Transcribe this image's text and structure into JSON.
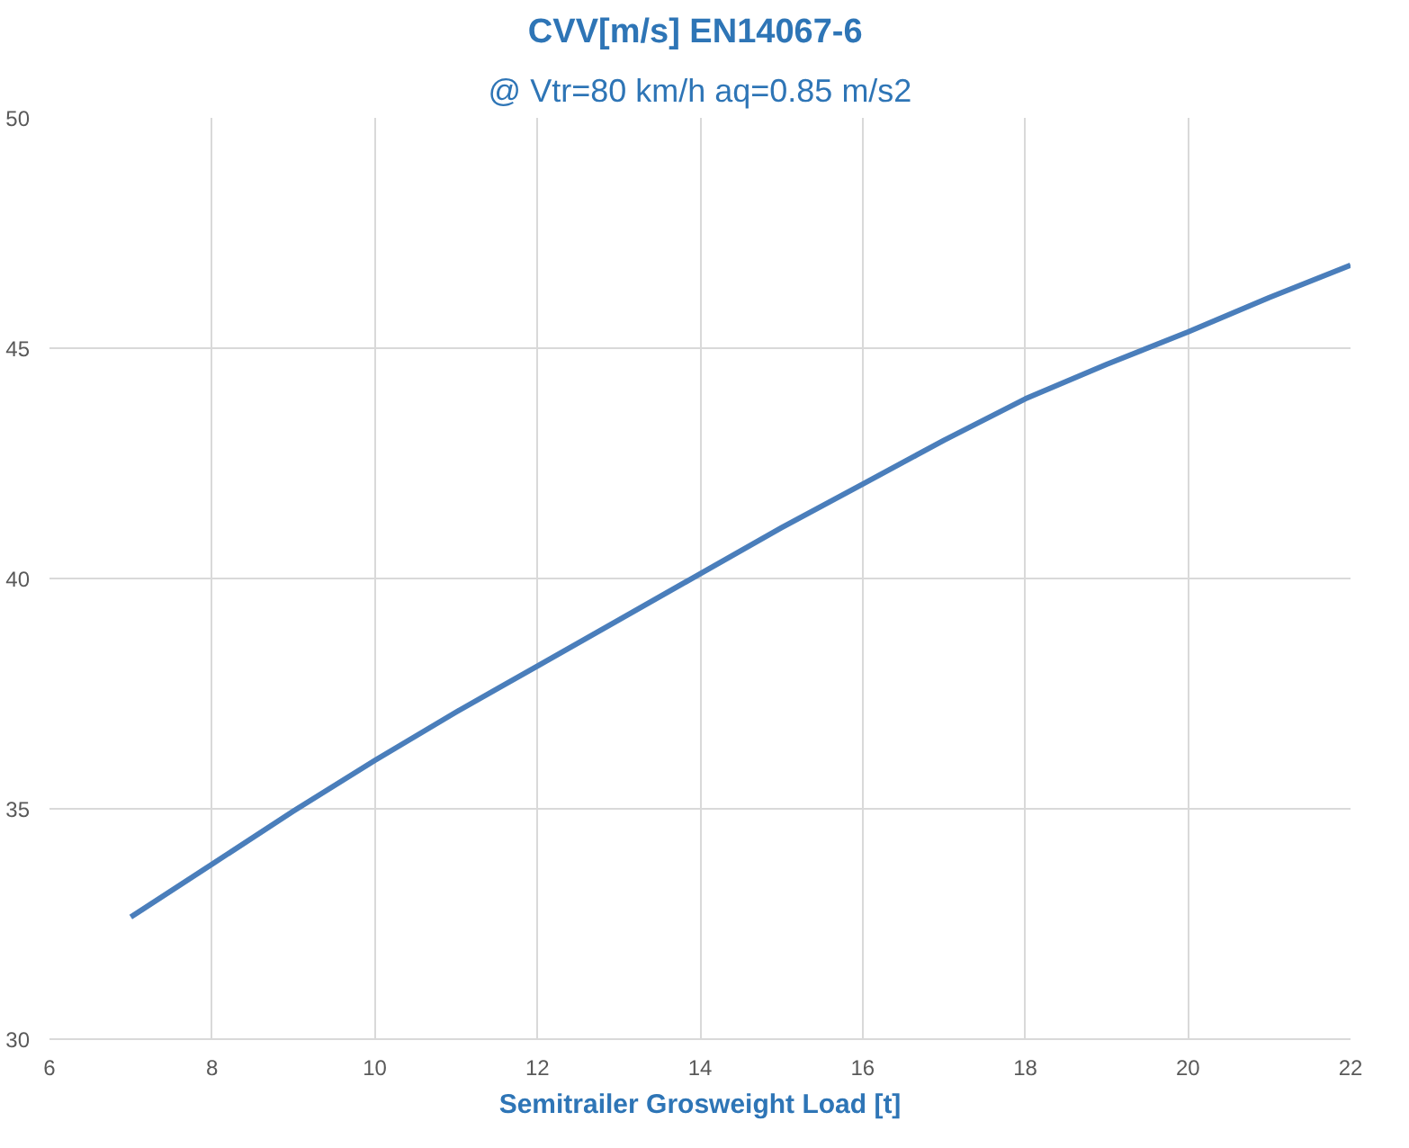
{
  "chart_data": {
    "type": "line",
    "title": "CVV[m/s]  EN14067-6",
    "subtitle": "@ Vtr=80 km/h aq=0.85 m/s2",
    "xlabel": "Semitrailer Grosweight Load [t]",
    "x": [
      7,
      8,
      9,
      10,
      11,
      12,
      13,
      14,
      15,
      16,
      17,
      18,
      19,
      20,
      21,
      22
    ],
    "series": [
      {
        "color": "#4a7ebb",
        "values": [
          32.65,
          33.8,
          34.95,
          36.05,
          37.1,
          38.1,
          39.1,
          40.1,
          41.1,
          42.05,
          43.0,
          43.9,
          44.65,
          45.35,
          46.1,
          46.8
        ]
      }
    ],
    "xlim": [
      6,
      22
    ],
    "ylim": [
      30,
      50
    ],
    "xticks": [
      6,
      8,
      10,
      12,
      14,
      16,
      18,
      20,
      22
    ],
    "yticks": [
      30,
      35,
      40,
      45,
      50
    ],
    "grid": true,
    "line_style": "solid"
  }
}
